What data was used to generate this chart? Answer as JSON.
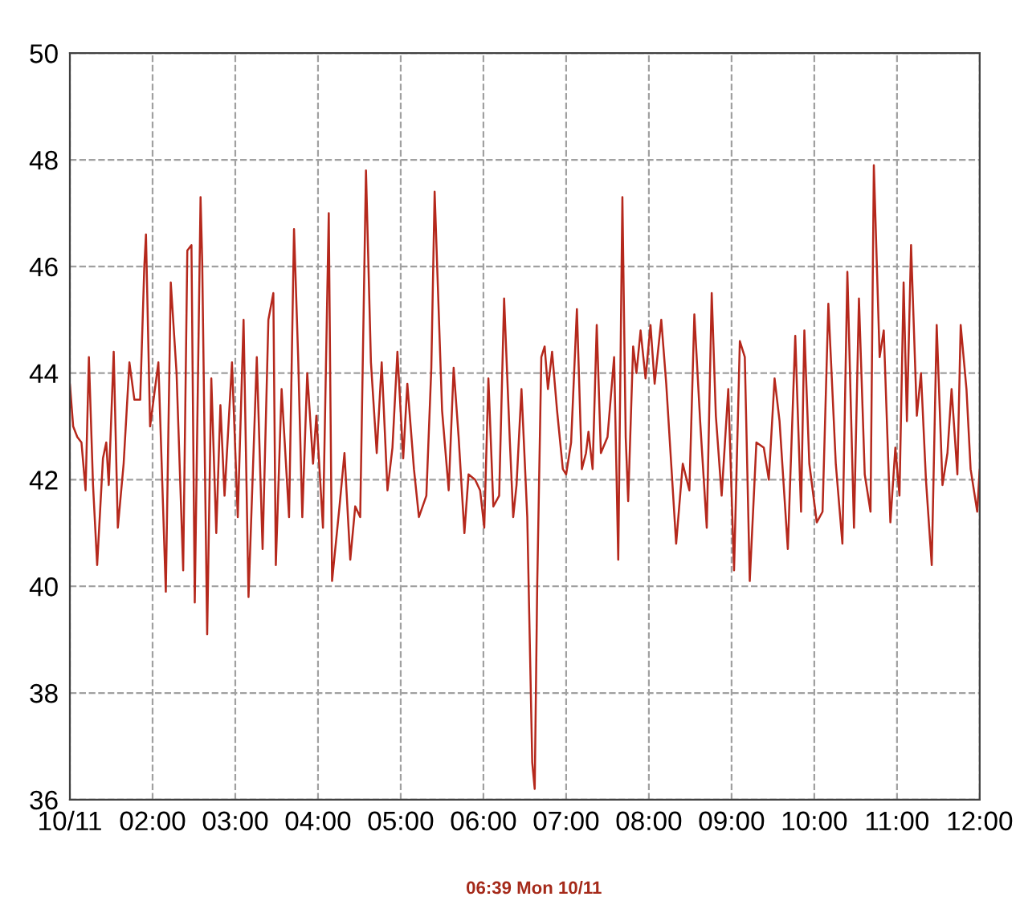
{
  "chart_data": {
    "type": "line",
    "x": [
      1.0,
      1.04,
      1.09,
      1.14,
      1.19,
      1.23,
      1.28,
      1.33,
      1.4,
      1.44,
      1.47,
      1.53,
      1.58,
      1.65,
      1.72,
      1.78,
      1.85,
      1.9,
      1.92,
      1.97,
      2.02,
      2.07,
      2.16,
      2.22,
      2.29,
      2.37,
      2.42,
      2.47,
      2.51,
      2.58,
      2.6,
      2.66,
      2.71,
      2.77,
      2.82,
      2.87,
      2.96,
      3.03,
      3.1,
      3.16,
      3.26,
      3.33,
      3.4,
      3.46,
      3.49,
      3.56,
      3.65,
      3.71,
      3.76,
      3.81,
      3.87,
      3.94,
      3.98,
      4.06,
      4.13,
      4.17,
      4.26,
      4.32,
      4.39,
      4.45,
      4.51,
      4.58,
      4.64,
      4.71,
      4.77,
      4.84,
      4.9,
      4.96,
      5.03,
      5.08,
      5.16,
      5.22,
      5.31,
      5.37,
      5.41,
      5.5,
      5.58,
      5.64,
      5.7,
      5.77,
      5.82,
      5.9,
      5.96,
      6.01,
      6.06,
      6.12,
      6.19,
      6.25,
      6.32,
      6.36,
      6.4,
      6.46,
      6.53,
      6.59,
      6.62,
      6.65,
      6.7,
      6.74,
      6.78,
      6.83,
      6.89,
      6.96,
      7.0,
      7.06,
      7.13,
      7.19,
      7.24,
      7.27,
      7.32,
      7.37,
      7.42,
      7.5,
      7.58,
      7.63,
      7.68,
      7.72,
      7.75,
      7.81,
      7.85,
      7.9,
      7.96,
      8.02,
      8.07,
      8.15,
      8.21,
      8.27,
      8.33,
      8.41,
      8.49,
      8.55,
      8.62,
      8.7,
      8.76,
      8.81,
      8.88,
      8.96,
      9.03,
      9.1,
      9.16,
      9.22,
      9.3,
      9.39,
      9.45,
      9.52,
      9.58,
      9.68,
      9.77,
      9.84,
      9.88,
      9.94,
      10.03,
      10.1,
      10.17,
      10.26,
      10.34,
      10.4,
      10.48,
      10.54,
      10.61,
      10.68,
      10.72,
      10.79,
      10.84,
      10.92,
      10.98,
      11.03,
      11.08,
      11.12,
      11.17,
      11.24,
      11.29,
      11.35,
      11.42,
      11.48,
      11.55,
      11.61,
      11.66,
      11.73,
      11.77,
      11.84,
      11.89,
      11.97,
      12.0
    ],
    "series": [
      {
        "color": "#b5281c",
        "values": [
          43.8,
          43.0,
          42.8,
          42.7,
          41.8,
          44.3,
          41.9,
          40.4,
          42.4,
          42.7,
          41.9,
          44.4,
          41.1,
          42.3,
          44.2,
          43.5,
          43.5,
          46.0,
          46.6,
          43.0,
          43.6,
          44.2,
          39.9,
          45.7,
          44.0,
          40.3,
          46.3,
          46.4,
          39.7,
          47.3,
          46.1,
          39.1,
          43.9,
          41.0,
          43.4,
          41.7,
          44.2,
          41.3,
          45.0,
          39.8,
          44.3,
          40.7,
          45.0,
          45.5,
          40.4,
          43.7,
          41.3,
          46.7,
          44.3,
          41.3,
          44.0,
          42.3,
          43.2,
          41.1,
          47.0,
          40.1,
          41.5,
          42.5,
          40.5,
          41.5,
          41.3,
          47.8,
          44.2,
          42.5,
          44.2,
          41.8,
          42.6,
          44.4,
          42.4,
          43.8,
          42.2,
          41.3,
          41.7,
          44.1,
          47.4,
          43.3,
          41.8,
          44.1,
          42.8,
          41.0,
          42.1,
          42.0,
          41.8,
          41.1,
          43.9,
          41.5,
          41.7,
          45.4,
          42.7,
          41.3,
          41.9,
          43.7,
          41.3,
          36.7,
          36.2,
          40.0,
          44.3,
          44.5,
          43.7,
          44.4,
          43.3,
          42.2,
          42.1,
          42.7,
          45.2,
          42.2,
          42.5,
          42.9,
          42.2,
          44.9,
          42.5,
          42.8,
          44.3,
          40.5,
          47.3,
          42.8,
          41.6,
          44.5,
          44.0,
          44.8,
          43.9,
          44.9,
          43.8,
          45.0,
          43.8,
          42.3,
          40.8,
          42.3,
          41.8,
          45.1,
          43.1,
          41.1,
          45.5,
          43.2,
          41.7,
          43.7,
          40.3,
          44.6,
          44.3,
          40.1,
          42.7,
          42.6,
          42.0,
          43.9,
          43.1,
          40.7,
          44.7,
          41.4,
          44.8,
          42.3,
          41.2,
          41.4,
          45.3,
          42.3,
          40.8,
          45.9,
          41.1,
          45.4,
          42.1,
          41.4,
          47.9,
          44.3,
          44.8,
          41.2,
          42.6,
          41.7,
          45.7,
          43.1,
          46.4,
          43.2,
          44.0,
          42.0,
          40.4,
          44.9,
          41.9,
          42.5,
          43.7,
          42.1,
          44.9,
          43.7,
          42.2,
          41.4,
          42.2
        ]
      }
    ],
    "xlim": [
      1,
      12
    ],
    "xticks": [
      {
        "value": 1,
        "label": "10/11"
      },
      {
        "value": 2,
        "label": "02:00"
      },
      {
        "value": 3,
        "label": "03:00"
      },
      {
        "value": 4,
        "label": "04:00"
      },
      {
        "value": 5,
        "label": "05:00"
      },
      {
        "value": 6,
        "label": "06:00"
      },
      {
        "value": 7,
        "label": "07:00"
      },
      {
        "value": 8,
        "label": "08:00"
      },
      {
        "value": 9,
        "label": "09:00"
      },
      {
        "value": 10,
        "label": "10:00"
      },
      {
        "value": 11,
        "label": "11:00"
      },
      {
        "value": 12,
        "label": "12:00"
      }
    ],
    "ylim": [
      36,
      50
    ],
    "yticks": [
      36,
      38,
      40,
      42,
      44,
      46,
      48,
      50
    ],
    "grid": true,
    "annotations": [
      "06:39 Mon 10/11"
    ]
  }
}
